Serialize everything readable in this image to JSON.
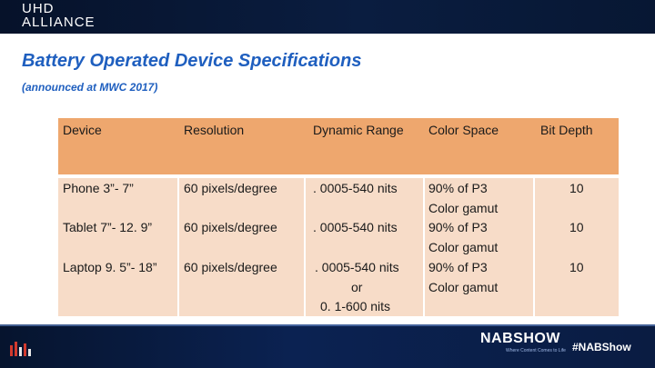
{
  "logo": {
    "line1": "UHD",
    "line2": "ALLIANCE"
  },
  "title": "Battery Operated Device Specifications",
  "subtitle": "(announced at MWC 2017)",
  "table": {
    "headers": [
      "Device",
      "Resolution",
      "Dynamic Range",
      "Color Space",
      "Bit Depth"
    ],
    "rows": [
      {
        "device": "Phone 3”- 7”",
        "resolution": "60 pixels/degree",
        "dynamic_range": ". 0005-540 nits",
        "color_space_1": "90% of P3",
        "color_space_2": "Color gamut",
        "bit_depth": "10"
      },
      {
        "device": "Tablet 7”- 12. 9”",
        "resolution": "60 pixels/degree",
        "dynamic_range": ". 0005-540 nits",
        "color_space_1": "90% of P3",
        "color_space_2": "Color gamut",
        "bit_depth": "10"
      },
      {
        "device": "Laptop 9. 5”- 18”",
        "resolution": "60 pixels/degree",
        "dynamic_range_1": ". 0005-540 nits",
        "dynamic_range_2": "or",
        "dynamic_range_3": "0. 1-600 nits",
        "color_space_1": "90% of P3",
        "color_space_2": "Color gamut",
        "bit_depth": "10"
      }
    ]
  },
  "footer": {
    "nab_logo": "NABSHOW",
    "nab_tagline": "Where Content Comes to Life",
    "hashtag": "#NABShow"
  },
  "colors": {
    "header_fill": "#eea76e",
    "body_fill": "#f7dcc8",
    "title_blue": "#1f5fbf",
    "band_navy": "#0a1d40"
  },
  "icons": {
    "footer_left": "bar-chart-icon"
  }
}
